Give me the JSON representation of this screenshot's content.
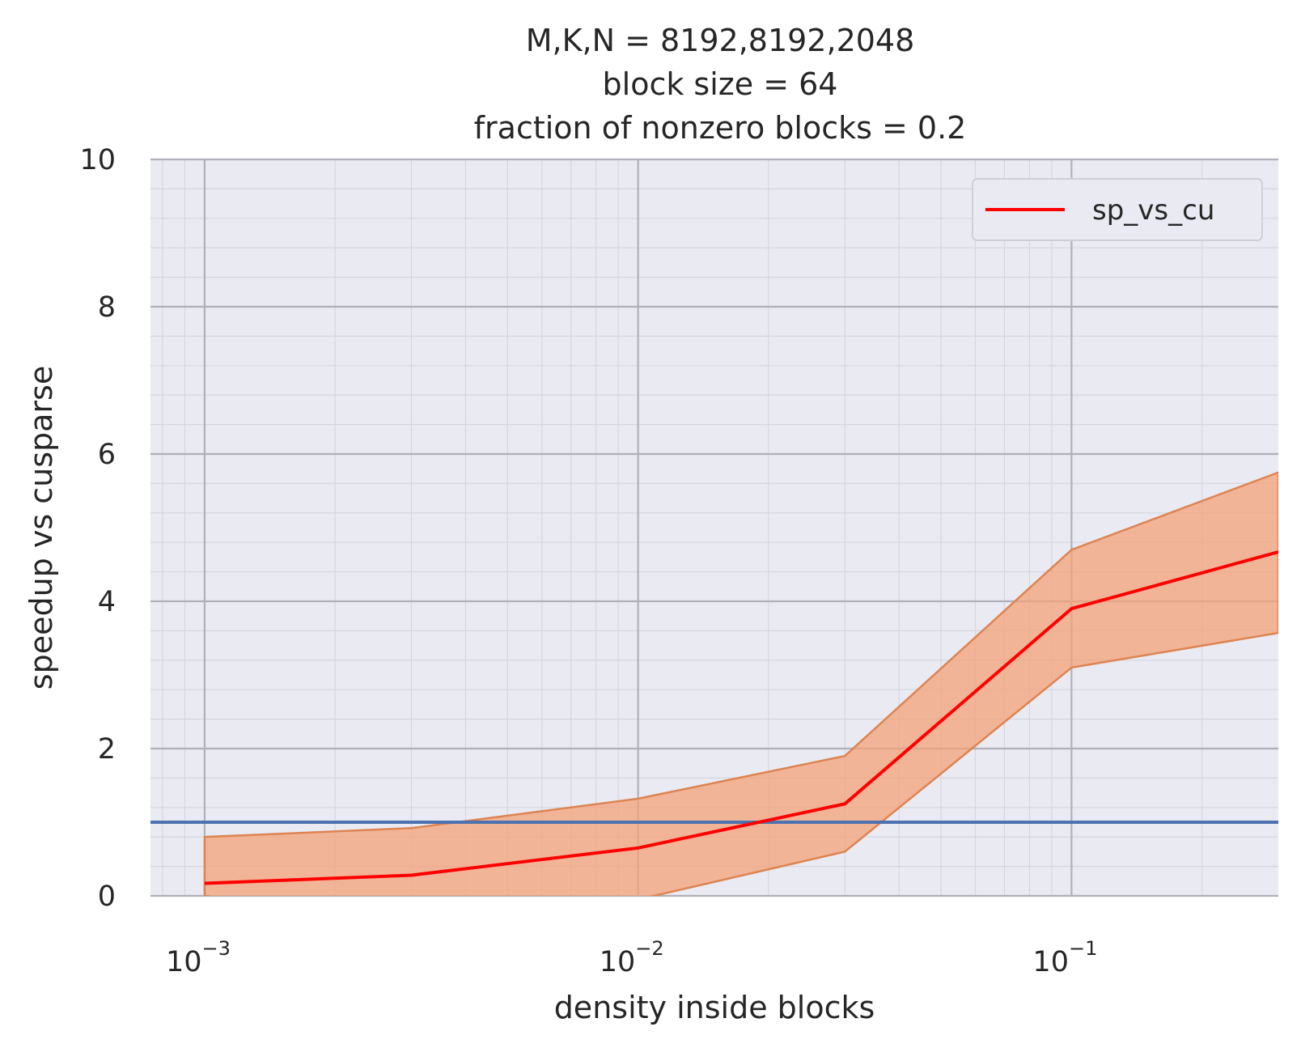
{
  "chart_data": {
    "type": "line",
    "title_lines": [
      "M,K,N = 8192,8192,2048",
      "block size = 64",
      "fraction of nonzero blocks = 0.2"
    ],
    "xlabel": "density inside blocks",
    "ylabel": "speedup vs cusparse",
    "xscale": "log",
    "xlim": [
      0.00075,
      0.3
    ],
    "ylim": [
      0,
      10
    ],
    "grid": true,
    "legend_position": "top-right",
    "x_ticks": [
      {
        "value": 0.001,
        "base": "10",
        "exp": "−3"
      },
      {
        "value": 0.01,
        "base": "10",
        "exp": "−2"
      },
      {
        "value": 0.1,
        "base": "10",
        "exp": "−1"
      }
    ],
    "y_ticks": [
      {
        "value": 0,
        "label": "0"
      },
      {
        "value": 2,
        "label": "2"
      },
      {
        "value": 4,
        "label": "4"
      },
      {
        "value": 6,
        "label": "6"
      },
      {
        "value": 8,
        "label": "8"
      },
      {
        "value": 10,
        "label": "10"
      }
    ],
    "series": [
      {
        "name": "sp_vs_cu",
        "color": "#ff0000",
        "band_color": "#f4a277",
        "x": [
          0.001,
          0.003,
          0.01,
          0.03,
          0.1,
          0.3
        ],
        "y": [
          0.17,
          0.28,
          0.65,
          1.25,
          3.9,
          4.67
        ],
        "lower": [
          0.0,
          -0.4,
          -0.05,
          0.6,
          3.1,
          3.57
        ],
        "upper": [
          0.8,
          0.92,
          1.32,
          1.9,
          4.7,
          5.75
        ]
      }
    ],
    "reference_line": {
      "y": 1.0,
      "color": "#4c72b0"
    }
  },
  "colors": {
    "plot_background": "#eaeaf2",
    "major_grid": "#b0b0b8",
    "minor_grid": "#d6d6de"
  }
}
